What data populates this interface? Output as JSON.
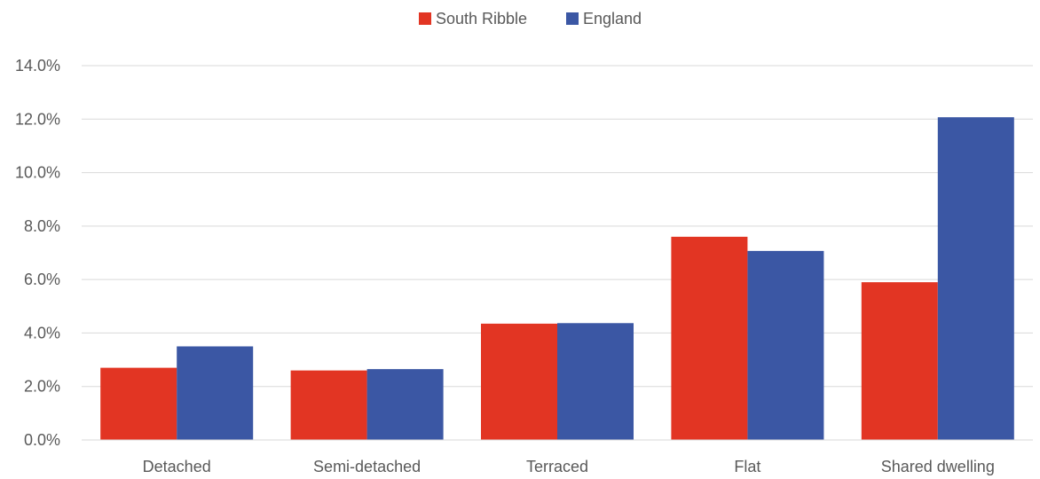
{
  "chart_data": {
    "type": "bar",
    "categories": [
      "Detached",
      "Semi-detached",
      "Terraced",
      "Flat",
      "Shared dwelling"
    ],
    "series": [
      {
        "name": "South Ribble",
        "values": [
          2.7,
          2.6,
          4.35,
          7.6,
          5.9
        ]
      },
      {
        "name": "England",
        "values": [
          3.5,
          2.65,
          4.37,
          7.07,
          12.07
        ]
      }
    ],
    "y_ticks": [
      "0.0%",
      "2.0%",
      "4.0%",
      "6.0%",
      "8.0%",
      "10.0%",
      "12.0%",
      "14.0%"
    ],
    "ylim": [
      0,
      14
    ],
    "y_unit": "%",
    "grid": true,
    "legend_position": "top-center",
    "colors": {
      "South Ribble": "#e23523",
      "England": "#3b57a4"
    }
  }
}
